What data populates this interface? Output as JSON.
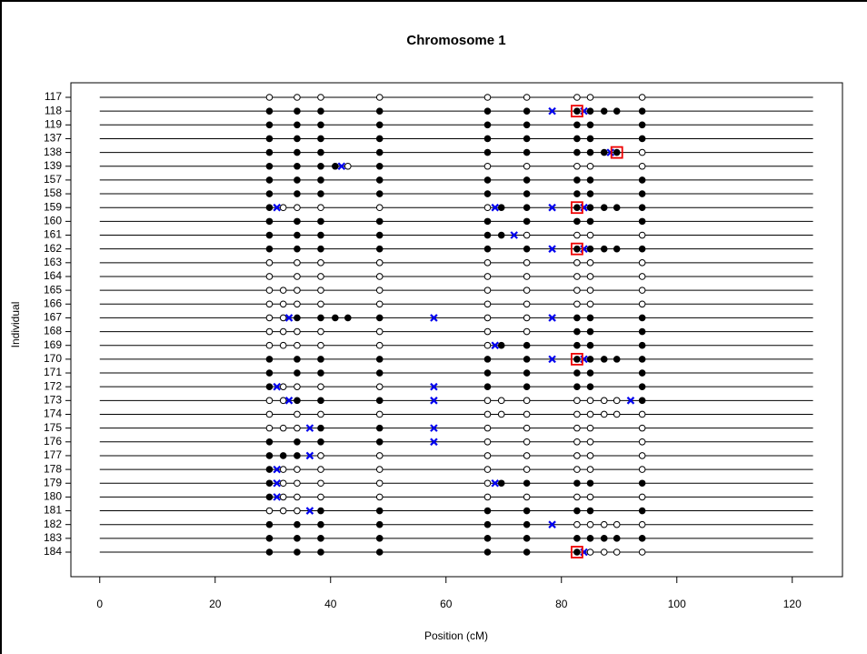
{
  "chart_data": {
    "type": "genotype",
    "title": "Chromosome 1",
    "x_label": "Position (cM)",
    "y_label": "Individual",
    "xlim": [
      -5,
      128.7
    ],
    "xticks": [
      0,
      20,
      40,
      60,
      80,
      100,
      120
    ],
    "chromosome_length": 123.6,
    "colors": {
      "filled": "#000000",
      "open": "#ffffff",
      "crossovers": "#0000ee",
      "flagged": "#ee0000"
    },
    "rows": [
      {
        "id": "117",
        "open": [
          29.4,
          34.2,
          38.3,
          48.5,
          67.2,
          74,
          82.7,
          85,
          94
        ]
      },
      {
        "id": "118",
        "filled": [
          29.4,
          34.2,
          38.3,
          48.5,
          67.2,
          74,
          82.7,
          85,
          87.4,
          89.6,
          94
        ],
        "crossovers": [
          78.4,
          83.9
        ],
        "flagged": [
          82.7
        ]
      },
      {
        "id": "119",
        "filled": [
          29.4,
          34.2,
          38.3,
          48.5,
          67.2,
          74,
          82.7,
          85,
          94
        ]
      },
      {
        "id": "137",
        "filled": [
          29.4,
          34.2,
          38.3,
          48.5,
          67.2,
          74,
          82.7,
          85,
          94
        ]
      },
      {
        "id": "138",
        "filled": [
          29.4,
          34.2,
          38.3,
          48.5,
          67.2,
          74,
          82.7,
          85,
          87.4,
          89.6
        ],
        "open": [
          94
        ],
        "crossovers": [
          88.5
        ],
        "flagged": [
          89.6
        ]
      },
      {
        "id": "139",
        "filled": [
          29.4,
          34.2,
          38.3,
          40.8,
          48.5
        ],
        "open": [
          43,
          67.2,
          74,
          82.7,
          85,
          94
        ],
        "crossovers": [
          41.9
        ]
      },
      {
        "id": "157",
        "filled": [
          29.4,
          34.2,
          38.3,
          48.5,
          67.2,
          74,
          82.7,
          85,
          94
        ]
      },
      {
        "id": "158",
        "filled": [
          29.4,
          34.2,
          38.3,
          48.5,
          67.2,
          74,
          82.7,
          85,
          94
        ]
      },
      {
        "id": "159",
        "filled": [
          29.4,
          69.6,
          74,
          82.7,
          85,
          87.4,
          89.6,
          94
        ],
        "open": [
          31.8,
          34.2,
          38.3,
          48.5,
          67.2
        ],
        "crossovers": [
          30.7,
          68.5,
          78.4,
          83.9
        ],
        "flagged": [
          82.7
        ]
      },
      {
        "id": "160",
        "filled": [
          29.4,
          34.2,
          38.3,
          48.5,
          67.2,
          74,
          82.7,
          85,
          94
        ]
      },
      {
        "id": "161",
        "filled": [
          29.4,
          34.2,
          38.3,
          48.5,
          67.2,
          69.6
        ],
        "open": [
          74,
          82.7,
          85,
          94
        ],
        "crossovers": [
          71.8
        ]
      },
      {
        "id": "162",
        "filled": [
          29.4,
          34.2,
          38.3,
          48.5,
          67.2,
          74,
          82.7,
          85,
          87.4,
          89.6,
          94
        ],
        "crossovers": [
          78.4,
          83.9
        ],
        "flagged": [
          82.7
        ]
      },
      {
        "id": "163",
        "open": [
          29.4,
          34.2,
          38.3,
          48.5,
          67.2,
          74,
          82.7,
          85,
          94
        ]
      },
      {
        "id": "164",
        "open": [
          29.4,
          34.2,
          38.3,
          48.5,
          67.2,
          74,
          82.7,
          85,
          94
        ]
      },
      {
        "id": "165",
        "open": [
          29.4,
          31.8,
          34.2,
          38.3,
          48.5,
          67.2,
          74,
          82.7,
          85,
          94
        ]
      },
      {
        "id": "166",
        "open": [
          29.4,
          31.8,
          34.2,
          38.3,
          48.5,
          67.2,
          74,
          82.7,
          85,
          94
        ]
      },
      {
        "id": "167",
        "filled": [
          34.2,
          38.3,
          40.8,
          43,
          48.5,
          82.7,
          85,
          94
        ],
        "open": [
          29.4,
          31.8,
          67.2,
          74
        ],
        "crossovers": [
          32.8,
          57.9,
          78.4
        ]
      },
      {
        "id": "168",
        "filled": [
          82.7,
          85,
          94
        ],
        "open": [
          29.4,
          31.8,
          34.2,
          38.3,
          48.5,
          67.2,
          74
        ]
      },
      {
        "id": "169",
        "filled": [
          69.6,
          74,
          82.7,
          85,
          94
        ],
        "open": [
          29.4,
          31.8,
          34.2,
          38.3,
          48.5,
          67.2
        ],
        "crossovers": [
          68.5
        ]
      },
      {
        "id": "170",
        "filled": [
          29.4,
          34.2,
          38.3,
          48.5,
          67.2,
          74,
          82.7,
          85,
          87.4,
          89.6,
          94
        ],
        "crossovers": [
          78.4,
          83.9
        ],
        "flagged": [
          82.7
        ]
      },
      {
        "id": "171",
        "filled": [
          29.4,
          34.2,
          38.3,
          48.5,
          67.2,
          74,
          82.7,
          85,
          94
        ]
      },
      {
        "id": "172",
        "filled": [
          29.4,
          67.2,
          74,
          82.7,
          85,
          94
        ],
        "open": [
          31.8,
          34.2,
          38.3,
          48.5
        ],
        "crossovers": [
          30.7,
          57.9
        ]
      },
      {
        "id": "173",
        "filled": [
          34.2,
          38.3,
          48.5,
          94
        ],
        "open": [
          29.4,
          31.8,
          67.2,
          69.6,
          74,
          82.7,
          85,
          87.4,
          89.6
        ],
        "crossovers": [
          32.8,
          57.9,
          92
        ]
      },
      {
        "id": "174",
        "open": [
          29.4,
          34.2,
          38.3,
          48.5,
          67.2,
          69.6,
          74,
          82.7,
          85,
          87.4,
          89.6,
          94
        ]
      },
      {
        "id": "175",
        "filled": [
          38.3,
          48.5
        ],
        "open": [
          29.4,
          31.8,
          34.2,
          67.2,
          74,
          82.7,
          85,
          94
        ],
        "crossovers": [
          36.4,
          57.9
        ]
      },
      {
        "id": "176",
        "filled": [
          29.4,
          34.2,
          38.3,
          48.5
        ],
        "open": [
          67.2,
          74,
          82.7,
          85,
          94
        ],
        "crossovers": [
          57.9
        ]
      },
      {
        "id": "177",
        "filled": [
          29.4,
          31.8,
          34.2
        ],
        "open": [
          38.3,
          48.5,
          67.2,
          74,
          82.7,
          85,
          94
        ],
        "crossovers": [
          36.4
        ]
      },
      {
        "id": "178",
        "filled": [
          29.4
        ],
        "open": [
          31.8,
          34.2,
          38.3,
          48.5,
          67.2,
          74,
          82.7,
          85,
          94
        ],
        "crossovers": [
          30.7
        ]
      },
      {
        "id": "179",
        "filled": [
          29.4,
          69.6,
          74,
          82.7,
          85,
          94
        ],
        "open": [
          31.8,
          34.2,
          38.3,
          48.5,
          67.2
        ],
        "crossovers": [
          30.7,
          68.5
        ]
      },
      {
        "id": "180",
        "filled": [
          29.4
        ],
        "open": [
          31.8,
          34.2,
          38.3,
          48.5,
          67.2,
          74,
          82.7,
          85,
          94
        ],
        "crossovers": [
          30.7
        ]
      },
      {
        "id": "181",
        "filled": [
          38.3,
          48.5,
          67.2,
          74,
          82.7,
          85,
          94
        ],
        "open": [
          29.4,
          31.8,
          34.2
        ],
        "crossovers": [
          36.4
        ]
      },
      {
        "id": "182",
        "filled": [
          29.4,
          34.2,
          38.3,
          48.5,
          67.2,
          74
        ],
        "open": [
          82.7,
          85,
          87.4,
          89.6,
          94
        ],
        "crossovers": [
          78.4
        ]
      },
      {
        "id": "183",
        "filled": [
          29.4,
          34.2,
          38.3,
          48.5,
          67.2,
          74,
          82.7,
          85,
          87.4,
          89.6,
          94
        ]
      },
      {
        "id": "184",
        "filled": [
          29.4,
          34.2,
          38.3,
          48.5,
          67.2,
          74,
          82.7
        ],
        "open": [
          85,
          87.4,
          89.6,
          94
        ],
        "crossovers": [
          83.9
        ],
        "flagged": [
          82.7
        ]
      }
    ]
  }
}
